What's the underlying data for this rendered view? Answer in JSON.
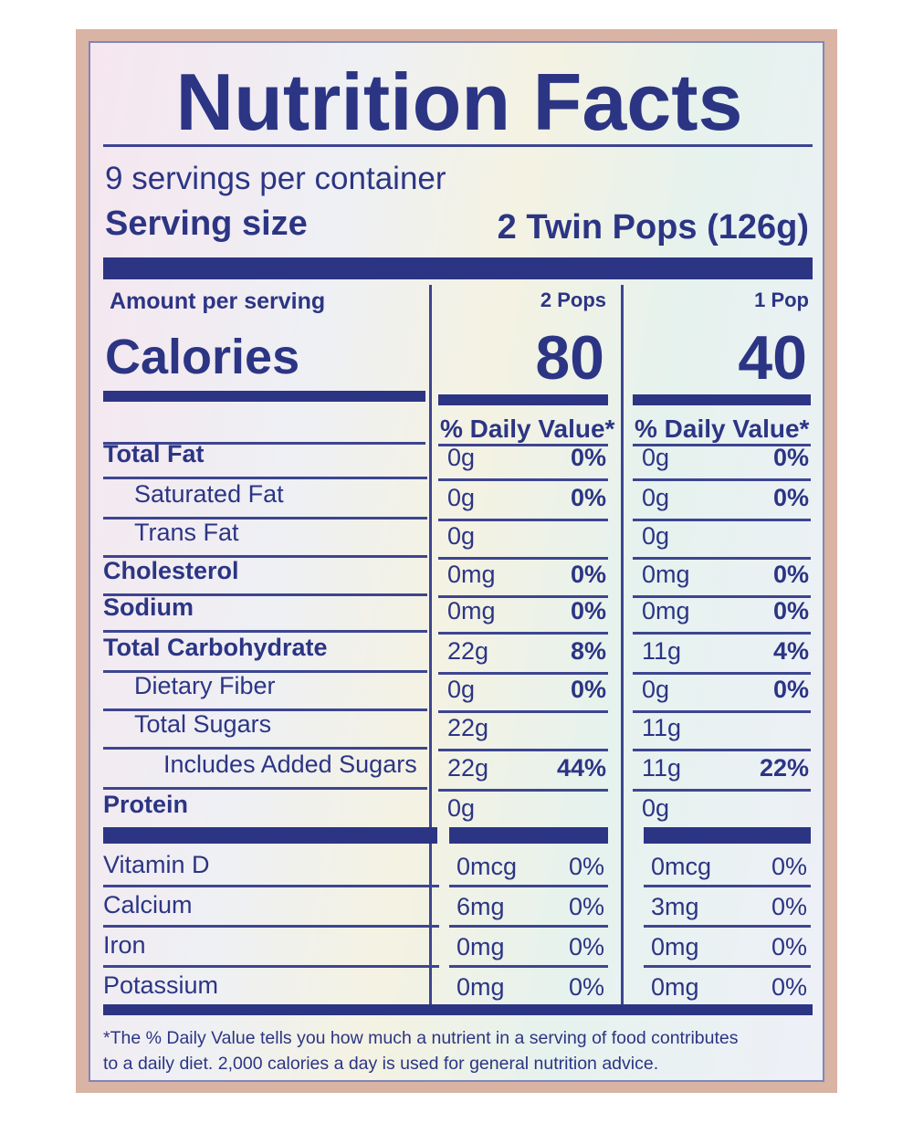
{
  "title": "Nutrition Facts",
  "servings": "9 servings per container",
  "serving_size_label": "Serving size",
  "serving_size": "2 Twin Pops (126g)",
  "amount_per_serving": "Amount per serving",
  "calories_label": "Calories",
  "columns": [
    {
      "header": "2 Pops",
      "calories": "80",
      "dv_header": "% Daily Value*"
    },
    {
      "header": "1 Pop",
      "calories": "40",
      "dv_header": "% Daily Value*"
    }
  ],
  "rows": [
    {
      "name": "Total Fat",
      "values": [
        "0g",
        "0%",
        "0g",
        "0%"
      ]
    },
    {
      "name": "Saturated Fat",
      "values": [
        "0g",
        "0%",
        "0g",
        "0%"
      ]
    },
    {
      "name": "Trans Fat",
      "values": [
        "0g",
        null,
        "0g",
        null
      ]
    },
    {
      "name": "Cholesterol",
      "values": [
        "0mg",
        "0%",
        "0mg",
        "0%"
      ]
    },
    {
      "name": "Sodium",
      "values": [
        "0mg",
        "0%",
        "0mg",
        "0%"
      ]
    },
    {
      "name": "Total Carbohydrate",
      "values": [
        "22g",
        "8%",
        "11g",
        "4%"
      ]
    },
    {
      "name": "Dietary Fiber",
      "values": [
        "0g",
        "0%",
        "0g",
        "0%"
      ]
    },
    {
      "name": "Total Sugars",
      "values": [
        "22g",
        null,
        "11g",
        null
      ]
    },
    {
      "name": "Includes Added Sugars",
      "values": [
        "22g",
        "44%",
        "11g",
        "22%"
      ]
    },
    {
      "name": "Protein",
      "values": [
        "0g",
        null,
        "0g",
        null
      ]
    }
  ],
  "vitamins": [
    {
      "name": "Vitamin D",
      "values": [
        "0mcg",
        "0%",
        "0mcg",
        "0%"
      ]
    },
    {
      "name": "Calcium",
      "values": [
        "6mg",
        "0%",
        "3mg",
        "0%"
      ]
    },
    {
      "name": "Iron",
      "values": [
        "0mg",
        "0%",
        "0mg",
        "0%"
      ]
    },
    {
      "name": "Potassium",
      "values": [
        "0mg",
        "0%",
        "0mg",
        "0%"
      ]
    }
  ],
  "footnote": [
    "*The % Daily Value tells you how much a nutrient in a serving of food contributes",
    "to a daily diet. 2,000 calories a day is used for general nutrition advice."
  ]
}
